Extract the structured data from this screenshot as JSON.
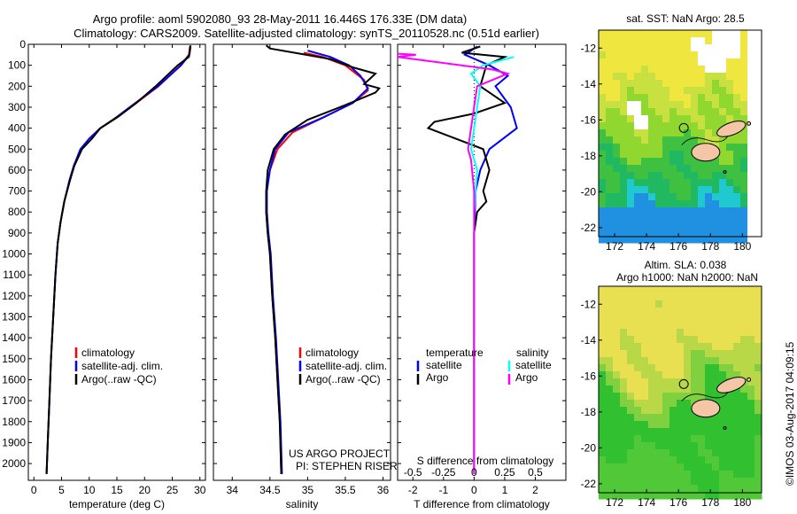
{
  "header": {
    "title_line1": "Argo profile: aoml 5902080_93 28-May-2011 16.446S 176.33E (DM data)",
    "title_line2": "Climatology: CARS2009. Satellite-adjusted climatology: synTS_20110528.nc (0.51d earlier)"
  },
  "footer": {
    "project": "US ARGO PROJECT",
    "pi": "PI: STEPHEN RISER",
    "stamp": "©IMOS 03-Aug-2017 04:09:15"
  },
  "colors": {
    "climatology": "#ff0000",
    "satellite": "#0000ff",
    "argo": "#000000",
    "sal_satellite": "#00ffff",
    "sal_argo": "#ff00ff",
    "land": "#f5c6a5"
  },
  "chart_data": [
    {
      "type": "line",
      "panel": "temperature",
      "xlabel": "temperature (deg C)",
      "ylabel": "",
      "xlim": [
        -1,
        31
      ],
      "ylim": [
        2080,
        0
      ],
      "xticks": [
        0,
        5,
        10,
        15,
        20,
        25,
        30
      ],
      "yticks": [
        0,
        100,
        200,
        300,
        400,
        500,
        600,
        700,
        800,
        900,
        1000,
        1100,
        1200,
        1300,
        1400,
        1500,
        1600,
        1700,
        1800,
        1900,
        2000
      ],
      "legend": [
        "climatology",
        "satellite-adj. clim.",
        "Argo(..raw -QC)"
      ],
      "series": [
        {
          "name": "climatology",
          "color": "#ff0000",
          "points": [
            [
              28.2,
              10
            ],
            [
              28.0,
              50
            ],
            [
              26.5,
              100
            ],
            [
              22.5,
              200
            ],
            [
              17.5,
              300
            ],
            [
              15.0,
              350
            ],
            [
              12.0,
              400
            ],
            [
              10.0,
              450
            ],
            [
              8.5,
              500
            ],
            [
              7.2,
              580
            ],
            [
              6.5,
              650
            ],
            [
              5.5,
              750
            ],
            [
              4.8,
              850
            ],
            [
              4.3,
              950
            ],
            [
              3.9,
              1100
            ],
            [
              3.5,
              1300
            ],
            [
              3.1,
              1500
            ],
            [
              2.8,
              1700
            ],
            [
              2.5,
              1900
            ],
            [
              2.3,
              2050
            ]
          ]
        },
        {
          "name": "satellite-adj. clim.",
          "color": "#0000ff",
          "points": [
            [
              28.3,
              10
            ],
            [
              28.1,
              50
            ],
            [
              26.6,
              100
            ],
            [
              22.4,
              200
            ],
            [
              17.3,
              300
            ],
            [
              14.8,
              350
            ],
            [
              12.0,
              400
            ],
            [
              10.0,
              450
            ],
            [
              8.4,
              500
            ],
            [
              7.2,
              580
            ],
            [
              6.4,
              650
            ],
            [
              5.5,
              750
            ],
            [
              4.8,
              850
            ],
            [
              4.3,
              950
            ],
            [
              3.9,
              1100
            ],
            [
              3.5,
              1300
            ],
            [
              3.1,
              1500
            ],
            [
              2.8,
              1700
            ],
            [
              2.5,
              1900
            ],
            [
              2.3,
              2050
            ]
          ]
        },
        {
          "name": "Argo(..raw -QC)",
          "color": "#000000",
          "points": [
            [
              28.3,
              5
            ],
            [
              28.2,
              30
            ],
            [
              28.0,
              60
            ],
            [
              26.0,
              100
            ],
            [
              22.0,
              200
            ],
            [
              18.5,
              280
            ],
            [
              15.5,
              340
            ],
            [
              12.0,
              400
            ],
            [
              10.5,
              450
            ],
            [
              8.7,
              500
            ],
            [
              7.3,
              580
            ],
            [
              6.5,
              650
            ],
            [
              5.5,
              750
            ],
            [
              4.8,
              850
            ],
            [
              4.3,
              950
            ],
            [
              3.9,
              1100
            ],
            [
              3.5,
              1300
            ],
            [
              3.1,
              1500
            ],
            [
              2.8,
              1700
            ],
            [
              2.5,
              1900
            ],
            [
              2.3,
              2050
            ]
          ]
        }
      ]
    },
    {
      "type": "line",
      "panel": "salinity",
      "xlabel": "salinity",
      "ylabel": "",
      "xlim": [
        33.75,
        36.1
      ],
      "ylim": [
        2080,
        0
      ],
      "xticks": [
        34,
        34.5,
        35,
        35.5,
        36
      ],
      "legend": [
        "climatology",
        "satellite-adj. clim.",
        "Argo(..raw -QC)"
      ],
      "series": [
        {
          "name": "climatology",
          "color": "#ff0000",
          "points": [
            [
              34.95,
              40
            ],
            [
              35.2,
              60
            ],
            [
              35.5,
              100
            ],
            [
              35.75,
              170
            ],
            [
              35.8,
              220
            ],
            [
              35.6,
              280
            ],
            [
              35.2,
              350
            ],
            [
              34.8,
              420
            ],
            [
              34.6,
              500
            ],
            [
              34.5,
              600
            ],
            [
              34.45,
              700
            ],
            [
              34.45,
              800
            ],
            [
              34.47,
              900
            ],
            [
              34.5,
              1000
            ],
            [
              34.53,
              1200
            ],
            [
              34.57,
              1400
            ],
            [
              34.6,
              1600
            ],
            [
              34.63,
              1800
            ],
            [
              34.65,
              2050
            ]
          ]
        },
        {
          "name": "satellite-adj. clim.",
          "color": "#0000ff",
          "points": [
            [
              35.0,
              30
            ],
            [
              35.3,
              60
            ],
            [
              35.55,
              100
            ],
            [
              35.7,
              150
            ],
            [
              35.8,
              210
            ],
            [
              35.6,
              280
            ],
            [
              35.2,
              350
            ],
            [
              34.75,
              420
            ],
            [
              34.57,
              500
            ],
            [
              34.5,
              600
            ],
            [
              34.46,
              700
            ],
            [
              34.46,
              800
            ],
            [
              34.48,
              900
            ],
            [
              34.51,
              1000
            ],
            [
              34.54,
              1200
            ],
            [
              34.58,
              1400
            ],
            [
              34.61,
              1600
            ],
            [
              34.64,
              1800
            ],
            [
              34.66,
              2050
            ]
          ]
        },
        {
          "name": "Argo(..raw -QC)",
          "color": "#000000",
          "points": [
            [
              34.45,
              5
            ],
            [
              34.5,
              20
            ],
            [
              34.9,
              45
            ],
            [
              35.3,
              70
            ],
            [
              35.6,
              110
            ],
            [
              35.9,
              140
            ],
            [
              35.75,
              190
            ],
            [
              35.95,
              210
            ],
            [
              35.9,
              230
            ],
            [
              35.5,
              290
            ],
            [
              35.0,
              360
            ],
            [
              34.7,
              430
            ],
            [
              34.55,
              500
            ],
            [
              34.47,
              600
            ],
            [
              34.45,
              700
            ],
            [
              34.45,
              800
            ],
            [
              34.47,
              900
            ],
            [
              34.5,
              1000
            ],
            [
              34.53,
              1200
            ],
            [
              34.57,
              1400
            ],
            [
              34.6,
              1600
            ],
            [
              34.63,
              1800
            ],
            [
              34.65,
              2050
            ]
          ]
        }
      ]
    },
    {
      "type": "line",
      "panel": "difference",
      "xlabel": "T difference from climatology",
      "xlabel_top": "S difference from climatology",
      "xlim": [
        -2.5,
        3.0
      ],
      "ylim": [
        2080,
        0
      ],
      "xticks": [
        -2,
        -1,
        0,
        1,
        2
      ],
      "top_tick_labels": [
        "-0.5",
        "-0.25",
        "0",
        "0.25",
        "0.5"
      ],
      "top_tick_positions": [
        -2,
        -1,
        0,
        1,
        2
      ],
      "legend_temperature_title": "temperature",
      "legend_salinity_title": "salinity",
      "legend": [
        "satellite",
        "Argo",
        "satellite",
        "Argo"
      ],
      "series": [
        {
          "name": "satellite",
          "group": "temperature",
          "color": "#0000ff",
          "points": [
            [
              0.1,
              10
            ],
            [
              -0.3,
              50
            ],
            [
              0.5,
              100
            ],
            [
              1.1,
              150
            ],
            [
              0.7,
              200
            ],
            [
              1.2,
              300
            ],
            [
              1.4,
              400
            ],
            [
              0.5,
              500
            ],
            [
              0.2,
              600
            ],
            [
              0.05,
              700
            ],
            [
              0.0,
              900
            ],
            [
              0.0,
              2050
            ]
          ]
        },
        {
          "name": "Argo",
          "group": "temperature",
          "color": "#000000",
          "points": [
            [
              0.2,
              10
            ],
            [
              -0.4,
              40
            ],
            [
              1.0,
              60
            ],
            [
              0.4,
              100
            ],
            [
              0.2,
              200
            ],
            [
              1.0,
              280
            ],
            [
              0.0,
              330
            ],
            [
              -1.3,
              370
            ],
            [
              -1.5,
              400
            ],
            [
              -0.6,
              450
            ],
            [
              0.3,
              500
            ],
            [
              0.5,
              600
            ],
            [
              0.3,
              700
            ],
            [
              0.4,
              750
            ],
            [
              0.1,
              800
            ],
            [
              0.0,
              900
            ],
            [
              0.0,
              2050
            ]
          ]
        },
        {
          "name": "satellite",
          "group": "salinity",
          "color": "#00ffff",
          "points": [
            [
              1.3,
              60
            ],
            [
              0.8,
              80
            ],
            [
              0.3,
              100
            ],
            [
              -0.1,
              140
            ],
            [
              0.2,
              200
            ],
            [
              0.0,
              400
            ],
            [
              -0.1,
              500
            ],
            [
              0.1,
              600
            ],
            [
              0.0,
              800
            ],
            [
              0.0,
              2050
            ]
          ]
        },
        {
          "name": "Argo",
          "group": "salinity",
          "color": "#ff00ff",
          "points": [
            [
              -2.6,
              45
            ],
            [
              -1.9,
              50
            ],
            [
              -2.6,
              60
            ],
            [
              0.6,
              120
            ],
            [
              1.1,
              140
            ],
            [
              0.1,
              200
            ],
            [
              -0.2,
              500
            ],
            [
              -0.1,
              550
            ],
            [
              0.0,
              700
            ],
            [
              0.0,
              2050
            ]
          ]
        }
      ]
    },
    {
      "type": "heatmap",
      "panel": "sst_map",
      "title": "sat. SST: NaN Argo: 28.5",
      "xlim": [
        171,
        181.2
      ],
      "ylim": [
        -22.5,
        -11
      ],
      "xticks": [
        172,
        174,
        176,
        178,
        180
      ],
      "yticks": [
        -12,
        -14,
        -16,
        -18,
        -20,
        -22
      ],
      "marker": {
        "lon": 176.33,
        "lat": -16.446
      }
    },
    {
      "type": "heatmap",
      "panel": "sla_map",
      "title_line1": "Altim. SLA: 0.038",
      "title_line2": "Argo h1000: NaN h2000: NaN",
      "xlim": [
        171,
        181.2
      ],
      "ylim": [
        -22.5,
        -11
      ],
      "xticks": [
        172,
        174,
        176,
        178,
        180
      ],
      "yticks": [
        -12,
        -14,
        -16,
        -18,
        -20,
        -22
      ],
      "marker": {
        "lon": 176.33,
        "lat": -16.446
      }
    }
  ]
}
